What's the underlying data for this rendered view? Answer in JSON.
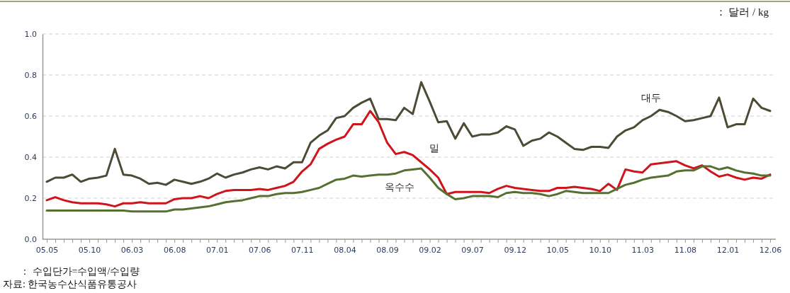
{
  "chart_data": {
    "type": "line",
    "categories": [
      "05.05",
      null,
      null,
      null,
      null,
      "05.10",
      null,
      null,
      null,
      null,
      "06.03",
      null,
      null,
      null,
      null,
      "06.08",
      null,
      null,
      null,
      null,
      "07.01",
      null,
      null,
      null,
      null,
      "07.06",
      null,
      null,
      null,
      null,
      "07.11",
      null,
      null,
      null,
      null,
      "08.04",
      null,
      null,
      null,
      null,
      "08.09",
      null,
      null,
      null,
      null,
      "09.02",
      null,
      null,
      null,
      null,
      "09.07",
      null,
      null,
      null,
      null,
      "09.12",
      null,
      null,
      null,
      null,
      "10.05",
      null,
      null,
      null,
      null,
      "10.10",
      null,
      null,
      null,
      null,
      "11.03",
      null,
      null,
      null,
      null,
      "11.08",
      null,
      null,
      null,
      null,
      "12.01",
      null,
      null,
      null,
      null,
      "12.06"
    ],
    "series": [
      {
        "name": "대두",
        "color": "#4d4a36",
        "values": [
          0.28,
          0.3,
          0.3,
          0.315,
          0.28,
          0.295,
          0.3,
          0.31,
          0.44,
          0.315,
          0.31,
          0.295,
          0.27,
          0.275,
          0.265,
          0.29,
          0.28,
          0.27,
          0.28,
          0.295,
          0.32,
          0.3,
          0.315,
          0.325,
          0.34,
          0.35,
          0.34,
          0.355,
          0.345,
          0.375,
          0.375,
          0.47,
          0.505,
          0.53,
          0.59,
          0.6,
          0.64,
          0.665,
          0.685,
          0.585,
          0.585,
          0.58,
          0.64,
          0.61,
          0.765,
          0.67,
          0.57,
          0.575,
          0.49,
          0.565,
          0.5,
          0.51,
          0.51,
          0.52,
          0.55,
          0.535,
          0.455,
          0.48,
          0.49,
          0.52,
          0.5,
          0.47,
          0.44,
          0.435,
          0.45,
          0.45,
          0.445,
          0.5,
          0.53,
          0.545,
          0.58,
          0.6,
          0.63,
          0.62,
          0.6,
          0.575,
          0.58,
          0.59,
          0.6,
          0.69,
          0.545,
          0.56,
          0.56,
          0.685,
          0.64,
          0.625
        ]
      },
      {
        "name": "밀",
        "color": "#d0141c",
        "values": [
          0.19,
          0.205,
          0.19,
          0.18,
          0.175,
          0.175,
          0.175,
          0.17,
          0.16,
          0.175,
          0.175,
          0.18,
          0.175,
          0.175,
          0.175,
          0.195,
          0.2,
          0.2,
          0.21,
          0.2,
          0.22,
          0.235,
          0.24,
          0.24,
          0.24,
          0.245,
          0.24,
          0.25,
          0.26,
          0.28,
          0.33,
          0.365,
          0.44,
          0.465,
          0.485,
          0.5,
          0.56,
          0.56,
          0.625,
          0.57,
          0.47,
          0.415,
          0.425,
          0.41,
          0.375,
          0.34,
          0.3,
          0.22,
          0.23,
          0.23,
          0.23,
          0.23,
          0.225,
          0.245,
          0.26,
          0.25,
          0.245,
          0.24,
          0.235,
          0.235,
          0.25,
          0.25,
          0.255,
          0.25,
          0.245,
          0.235,
          0.27,
          0.24,
          0.34,
          0.33,
          0.325,
          0.365,
          0.37,
          0.375,
          0.38,
          0.36,
          0.345,
          0.36,
          0.33,
          0.305,
          0.315,
          0.3,
          0.29,
          0.3,
          0.295,
          0.315
        ]
      },
      {
        "name": "옥수수",
        "color": "#557030",
        "values": [
          0.14,
          0.14,
          0.14,
          0.14,
          0.14,
          0.14,
          0.14,
          0.14,
          0.14,
          0.14,
          0.135,
          0.135,
          0.135,
          0.135,
          0.135,
          0.145,
          0.145,
          0.15,
          0.155,
          0.16,
          0.17,
          0.18,
          0.185,
          0.19,
          0.2,
          0.21,
          0.21,
          0.22,
          0.225,
          0.225,
          0.23,
          0.24,
          0.25,
          0.27,
          0.29,
          0.295,
          0.31,
          0.305,
          0.31,
          0.315,
          0.315,
          0.32,
          0.335,
          0.34,
          0.345,
          0.3,
          0.25,
          0.22,
          0.195,
          0.2,
          0.21,
          0.21,
          0.21,
          0.205,
          0.225,
          0.23,
          0.225,
          0.225,
          0.22,
          0.21,
          0.22,
          0.235,
          0.23,
          0.225,
          0.225,
          0.225,
          0.225,
          0.245,
          0.265,
          0.275,
          0.29,
          0.3,
          0.305,
          0.31,
          0.33,
          0.335,
          0.335,
          0.355,
          0.355,
          0.34,
          0.35,
          0.335,
          0.325,
          0.32,
          0.31,
          0.31
        ]
      }
    ],
    "ylim": [
      0,
      1
    ],
    "yticks": [
      {
        "value": 0,
        "label": "0.0"
      },
      {
        "value": 0.2,
        "label": "0.2"
      },
      {
        "value": 0.4,
        "label": "0.4"
      },
      {
        "value": 0.6,
        "label": "0.6"
      },
      {
        "value": 0.8,
        "label": "0.8"
      },
      {
        "value": 1,
        "label": "1.0"
      }
    ],
    "grid": "y",
    "annotations": [
      "： 달러 / kg",
      "：  수입단가=수입액/수입량",
      "자료:  한국농수산식품유통공사"
    ]
  }
}
